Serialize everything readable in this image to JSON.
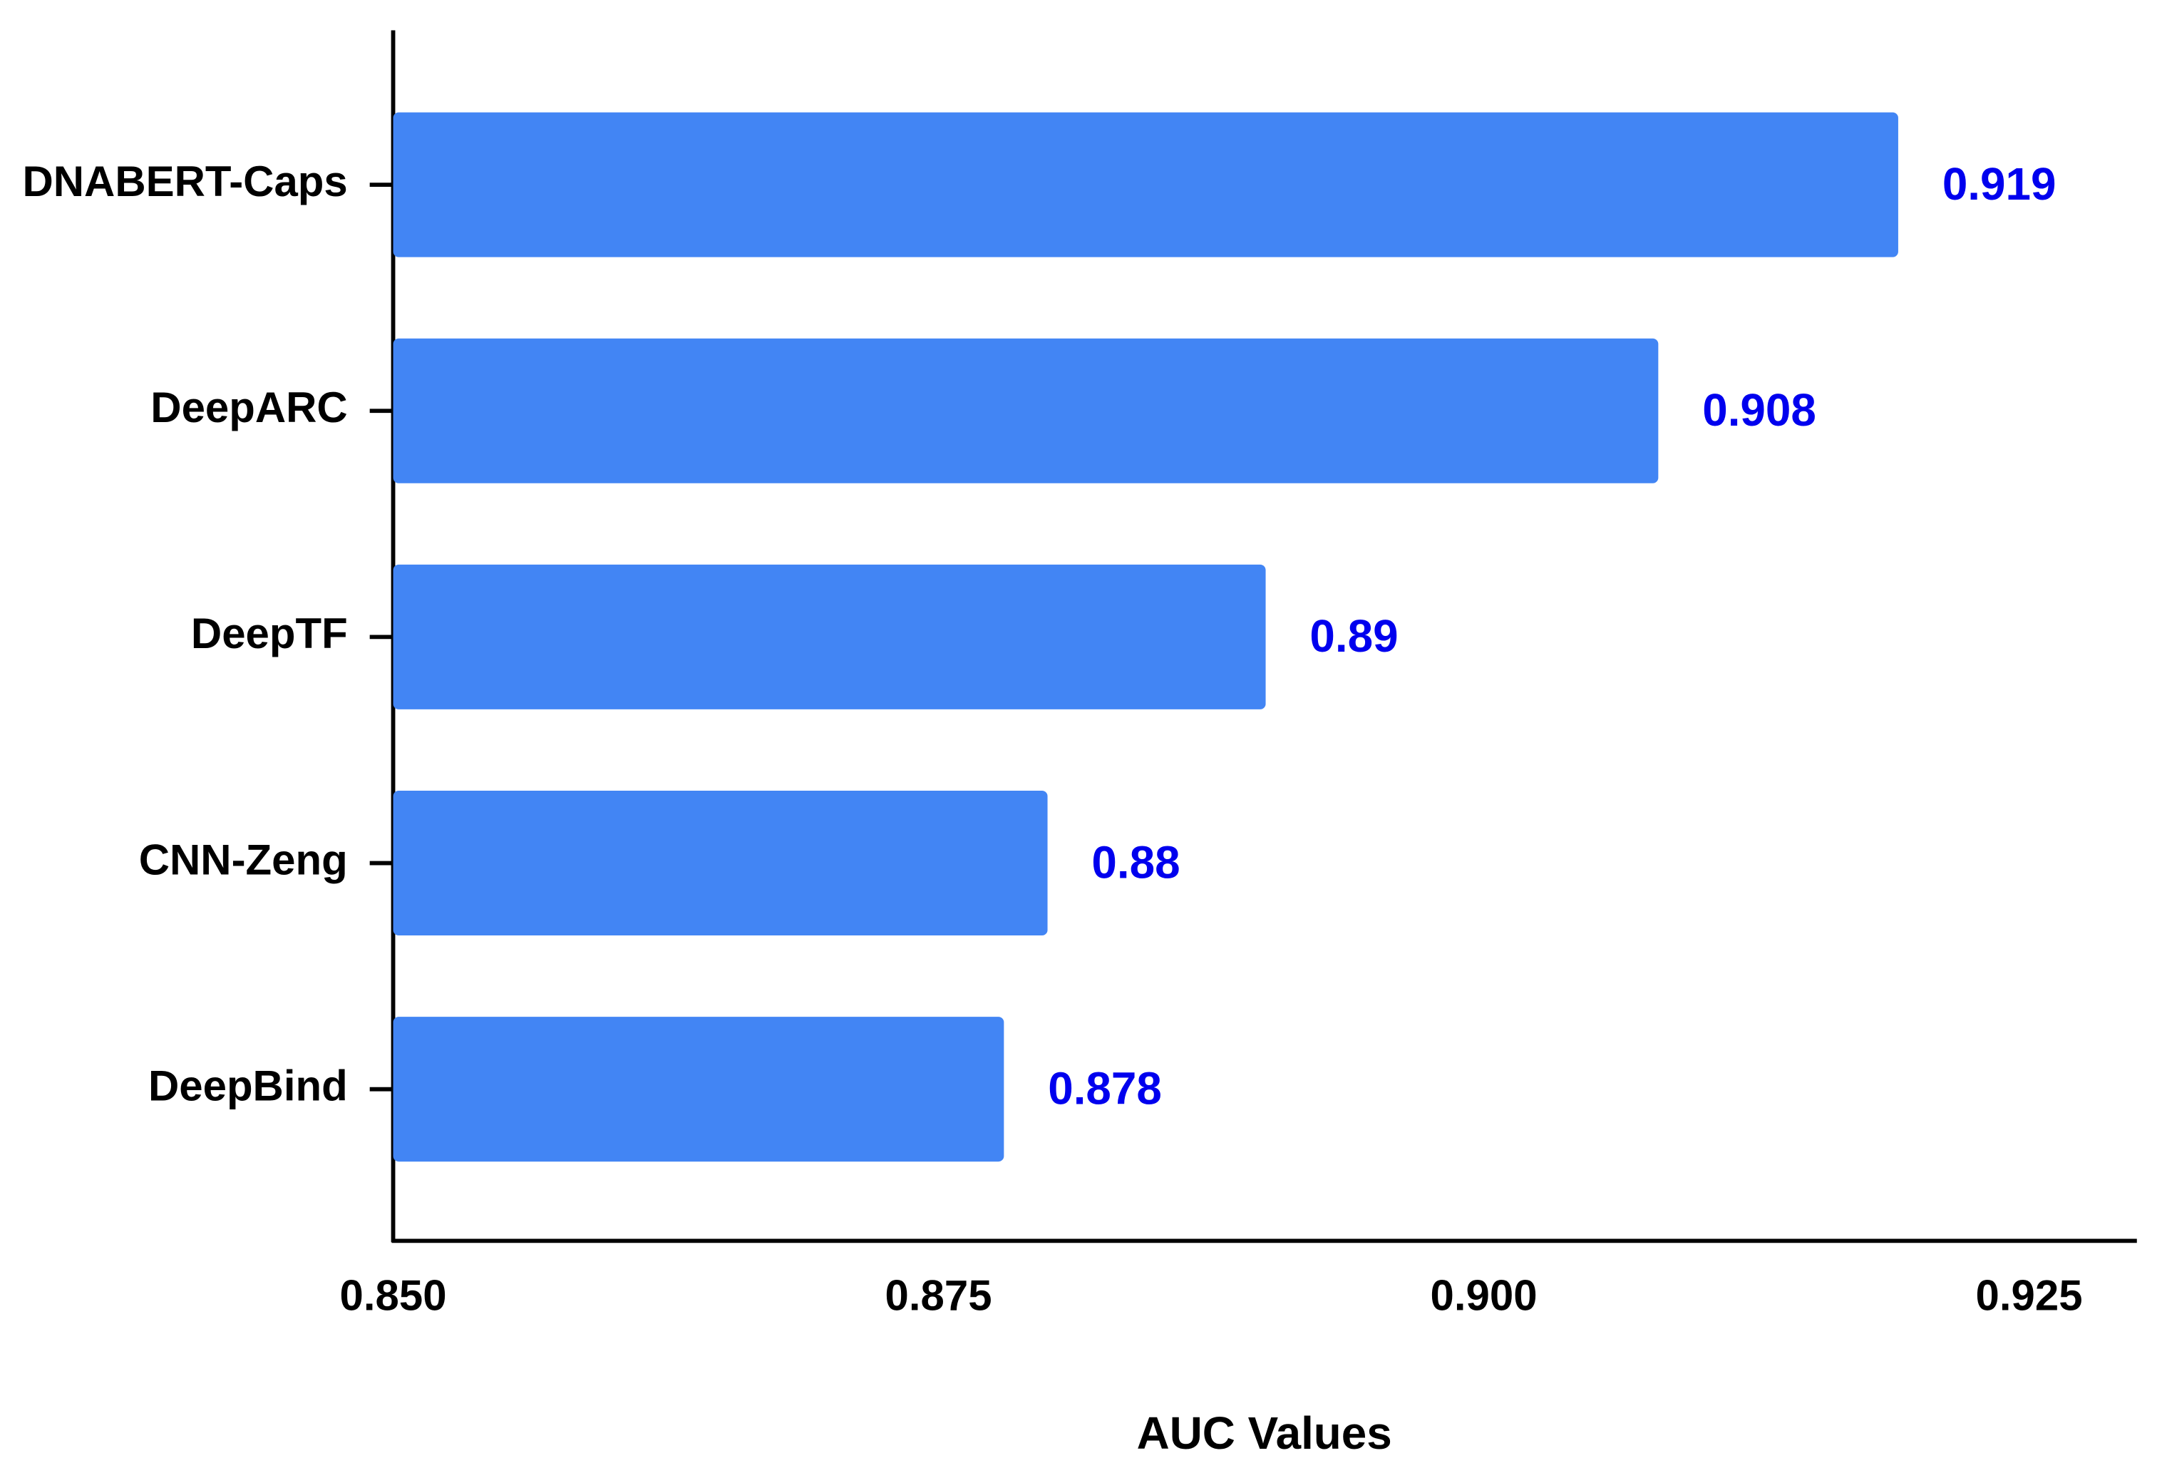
{
  "chart_data": {
    "type": "barh",
    "xlabel": "AUC Values",
    "categories": [
      "DNABERT-Caps",
      "DeepARC",
      "DeepTF",
      "CNN-Zeng",
      "DeepBind"
    ],
    "values": [
      0.919,
      0.908,
      0.89,
      0.88,
      0.878
    ],
    "color": "#4285f4",
    "value_label_color": "#0000ee",
    "xlim": [
      0.85,
      0.93
    ],
    "xticks": [
      {
        "value": 0.85,
        "label": "0.850"
      },
      0.875,
      {
        "value": 0.9,
        "label": "0.900"
      },
      0.925
    ],
    "grid": false
  }
}
